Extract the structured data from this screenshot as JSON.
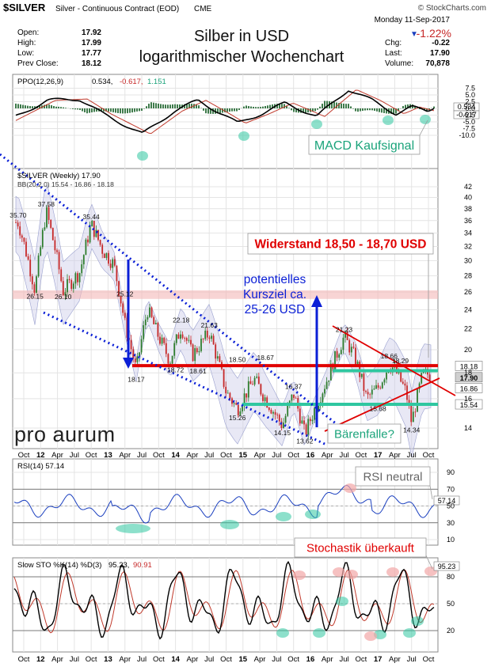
{
  "header": {
    "symbol": "$SILVER",
    "description": "Silver - Continuous Contract (EOD)",
    "exchange": "CME",
    "source": "© StockCharts.com",
    "date": "Monday  11-Sep-2017",
    "change_pct": "-1.22%",
    "stats_left": [
      {
        "label": "Open:",
        "value": "17.92"
      },
      {
        "label": "High:",
        "value": "17.99"
      },
      {
        "label": "Low:",
        "value": "17.77"
      },
      {
        "label": "Prev Close:",
        "value": "18.12"
      }
    ],
    "stats_right": [
      {
        "label": "Chg:",
        "value": "-0.22"
      },
      {
        "label": "Last:",
        "value": "17.90"
      },
      {
        "label": "Volume:",
        "value": "70,878"
      }
    ],
    "title_line1": "Silber in USD",
    "title_line2": "logarithmischer Wochenchart"
  },
  "colors": {
    "up": "#2e7d2e",
    "down": "#c62828",
    "annot_red": "#e00000",
    "annot_blue": "#0b1fd6",
    "annot_green": "#1aa37a",
    "support_green": "#2fc7a0",
    "band": "#cbcde8"
  },
  "ppo_panel": {
    "legend_name": "PPO(12,26,9)",
    "legend_values": [
      "0.534,",
      "-0.617,",
      "1.151"
    ],
    "ticks": [
      "7.5",
      "5.0",
      "2.5",
      "0.0",
      "-2.5",
      "-5.0",
      "-7.5",
      "-10.0"
    ],
    "last_labels": [
      "0.534",
      "-0.617"
    ],
    "annotation": "MACD Kaufsignal"
  },
  "price_panel": {
    "legend_name": "$SILVER (Weekly) 17.90",
    "bb_legend": "BB(20,2.0) 15.54 - 16.86 - 18.18",
    "ticks": [
      "42",
      "40",
      "38",
      "36",
      "34",
      "32",
      "30",
      "28",
      "26",
      "24",
      "22",
      "20",
      "18",
      "16",
      "14"
    ],
    "last_labels": [
      "18.18",
      "17.90",
      "16.86",
      "15.54"
    ],
    "price_labels": [
      "35.70",
      "37.58",
      "35.44",
      "26.15",
      "26.10",
      "25.12",
      "22.18",
      "21.63",
      "18.17",
      "18.72",
      "18.61",
      "18.50",
      "18.67",
      "16.37",
      "15.26",
      "14.15",
      "13.62",
      "21.23",
      "18.66",
      "18.29",
      "15.68",
      "14.34"
    ],
    "annotations": {
      "resistance": "Widerstand 18,50 - 18,70 USD",
      "target": [
        "potentielles",
        "Kursziel ca.",
        "25-26 USD"
      ],
      "bear_flag": "Bärenfalle?"
    },
    "logo": "pro aurum"
  },
  "rsi_panel": {
    "legend": "RSI(14) 57.14",
    "ticks": [
      "90",
      "70",
      "50",
      "30",
      "10"
    ],
    "last_label": "57.14",
    "annotation": "RSI neutral"
  },
  "sto_panel": {
    "legend_name": "Slow STO %K(14) %D(3)",
    "legend_values": [
      "95.23,",
      "90.91"
    ],
    "ticks": [
      "80",
      "50",
      "20"
    ],
    "last_label": "95.23",
    "annotation": "Stochastik überkauft"
  },
  "x_axis": {
    "labels": [
      "Oct",
      "12",
      "Apr",
      "Jul",
      "Oct",
      "13",
      "Apr",
      "Jul",
      "Oct",
      "14",
      "Apr",
      "Jul",
      "Oct",
      "15",
      "Apr",
      "Jul",
      "Oct",
      "16",
      "Apr",
      "Jul",
      "Oct",
      "17",
      "Apr",
      "Jul",
      "Oct"
    ]
  },
  "chart_data": {
    "type": "line",
    "title": "Silber in USD logarithmischer Wochenchart",
    "scale": "log",
    "ylim": [
      13,
      43
    ],
    "xlim": [
      "2011-09",
      "2017-10"
    ],
    "series": [
      {
        "name": "$SILVER (Weekly)",
        "x": [
          "2011-09",
          "2011-12",
          "2012-02",
          "2012-05",
          "2012-08",
          "2012-10",
          "2012-12",
          "2013-02",
          "2013-04",
          "2013-06",
          "2013-08",
          "2013-10",
          "2013-12",
          "2014-02",
          "2014-04",
          "2014-07",
          "2014-10",
          "2014-12",
          "2015-03",
          "2015-05",
          "2015-08",
          "2015-10",
          "2015-12",
          "2016-02",
          "2016-04",
          "2016-07",
          "2016-09",
          "2016-11",
          "2017-01",
          "2017-03",
          "2017-04",
          "2017-06",
          "2017-07",
          "2017-09"
        ],
        "values": [
          35.7,
          26.15,
          37.58,
          26.1,
          28.5,
          35.44,
          31.5,
          29.5,
          22.5,
          18.17,
          24.0,
          21.2,
          19.0,
          22.18,
          19.5,
          21.63,
          16.5,
          15.26,
          17.5,
          16.0,
          14.15,
          16.37,
          13.62,
          15.5,
          17.5,
          21.23,
          19.2,
          16.0,
          16.8,
          18.66,
          18.29,
          16.5,
          14.34,
          17.9
        ]
      },
      {
        "name": "Widerstand 18,50 - 18,70 USD",
        "x": [
          "2013-06",
          "2017-09"
        ],
        "values": [
          18.6,
          18.6
        ]
      },
      {
        "name": "Support",
        "x": [
          "2014-12",
          "2017-09"
        ],
        "values": [
          15.6,
          15.6
        ]
      }
    ],
    "last_values": {
      "close": 17.9,
      "bb_upper": 18.18,
      "bb_mid": 16.86,
      "bb_lower": 15.54
    },
    "target_range": [
      25,
      26
    ],
    "indicators": {
      "ppo": 0.534,
      "ppo_signal": -0.617,
      "ppo_hist": 1.151,
      "rsi": 57.14,
      "sto_k": 95.23,
      "sto_d": 90.91
    }
  }
}
